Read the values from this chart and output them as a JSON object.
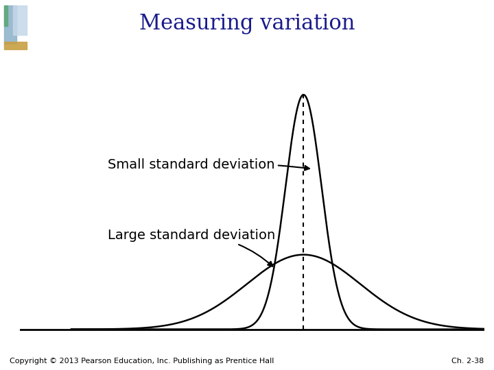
{
  "title": "Measuring variation",
  "title_color": "#1a1a8c",
  "title_fontsize": 22,
  "bg_color": "#ffffff",
  "label_small": "Small standard deviation",
  "label_large": "Large standard deviation",
  "label_fontsize": 14,
  "label_color": "#000000",
  "copyright_text": "Copyright © 2013 Pearson Education, Inc. Publishing as Prentice Hall",
  "chapter_text": "Ch. 2-38",
  "footer_fontsize": 8,
  "curve_color": "#000000",
  "dotted_line_color": "#000000",
  "mu": 0.0,
  "sigma_small": 0.35,
  "sigma_large": 1.1,
  "header_bar_height": 0.012,
  "header_bar_color": "#c8a06e"
}
